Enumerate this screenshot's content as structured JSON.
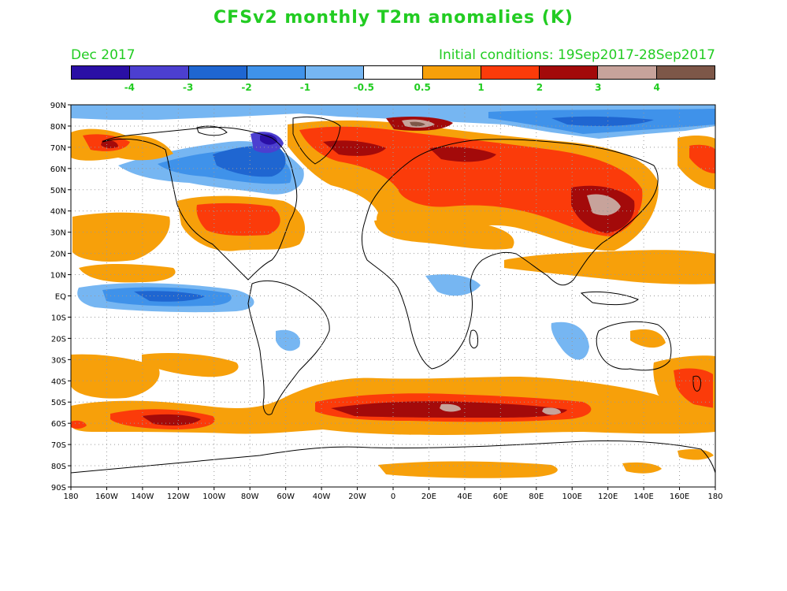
{
  "title": "CFSv2 monthly T2m anomalies (K)",
  "valid_month": "Dec 2017",
  "initial_conditions": "Initial conditions: 19Sep2017-28Sep2017",
  "colorbar": {
    "colors": [
      "#2a0fa5",
      "#4c3fd0",
      "#1f66d1",
      "#3f92ea",
      "#76b6f2",
      "#ffffff",
      "#f7a00a",
      "#fb3b0a",
      "#a30a0a",
      "#c7a39b",
      "#7d5748"
    ],
    "labels": [
      "-4",
      "-3",
      "-2",
      "-1",
      "-0.5",
      "0.5",
      "1",
      "2",
      "3",
      "4"
    ]
  },
  "axes": {
    "lat_labels": [
      "90N",
      "80N",
      "70N",
      "60N",
      "50N",
      "40N",
      "30N",
      "20N",
      "10N",
      "EQ",
      "10S",
      "20S",
      "30S",
      "40S",
      "50S",
      "60S",
      "70S",
      "80S",
      "90S"
    ],
    "lon_labels": [
      "180",
      "160W",
      "140W",
      "120W",
      "100W",
      "80W",
      "60W",
      "40W",
      "20W",
      "0",
      "20E",
      "40E",
      "60E",
      "80E",
      "100E",
      "120E",
      "140E",
      "160E",
      "180"
    ]
  },
  "anomaly_regions": [
    {
      "level": "-1",
      "desc": "Arctic Ocean band"
    },
    {
      "level": "-3",
      "desc": "northern Canada / Baffin"
    },
    {
      "level": "-1",
      "desc": "equatorial central Pacific"
    },
    {
      "level": "2",
      "desc": "Siberia and East Asia"
    },
    {
      "level": "3",
      "desc": "northeast China / Mongolia"
    },
    {
      "level": "2",
      "desc": "Southern Ocean band"
    },
    {
      "level": "1",
      "desc": "subtropical oceans"
    }
  ],
  "colors": {
    "text": "#22cc22",
    "background": "#ffffff"
  }
}
